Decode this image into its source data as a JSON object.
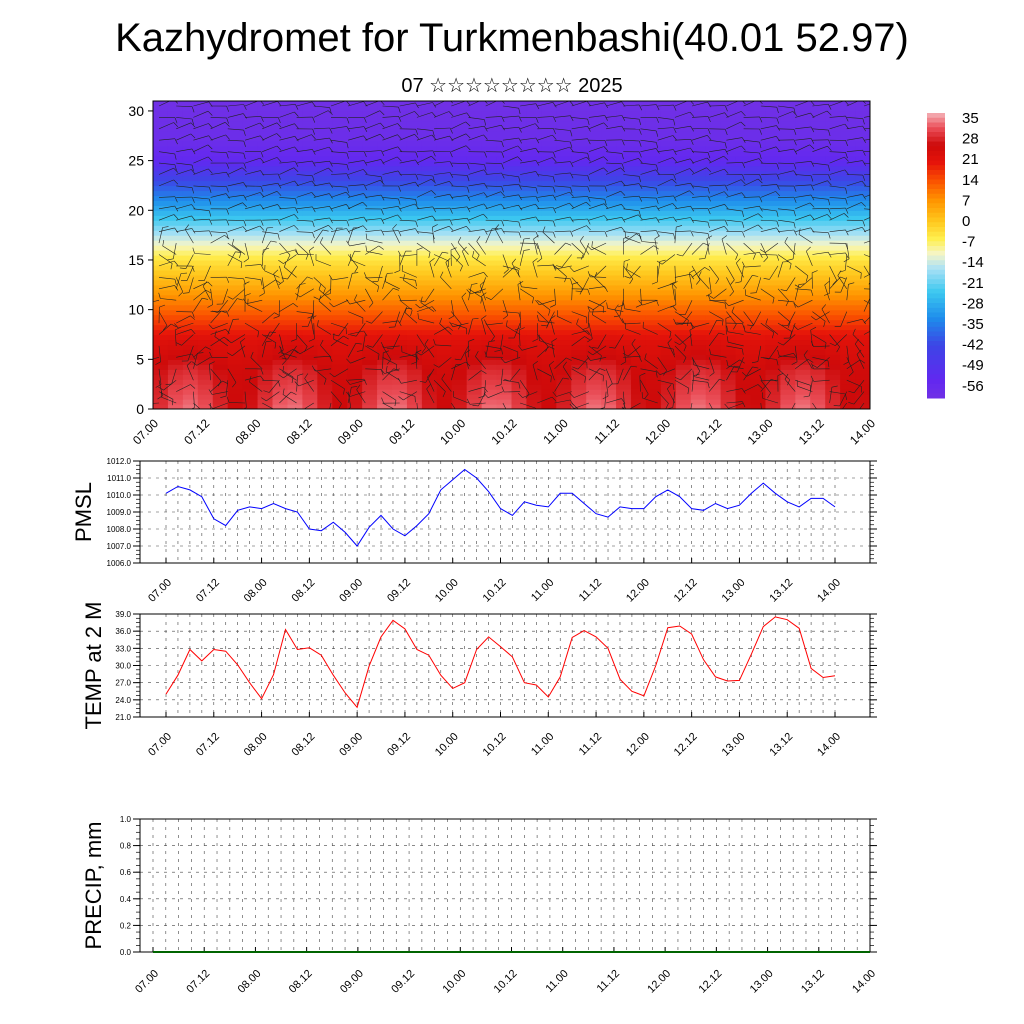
{
  "title": "Kazhydromet for Turkmenbashi(40.01 52.97)",
  "subtitle": "07 ☆☆☆☆☆☆☆☆ 2025",
  "colors": {
    "pmsl_line": "#0000ff",
    "temp_line": "#ff0000",
    "axis": "#000000",
    "precip_line": "#006400"
  },
  "chart_data": [
    {
      "type": "heatmap",
      "x_tick_labels": [
        "07.00",
        "07.12",
        "08.00",
        "08.12",
        "09.00",
        "09.12",
        "10.00",
        "10.12",
        "11.00",
        "11.12",
        "12.00",
        "12.12",
        "13.00",
        "13.12",
        "14.00"
      ],
      "y_ticks": [
        0,
        5,
        10,
        15,
        20,
        25,
        30
      ],
      "ylim": [
        0,
        31
      ],
      "colorbar_labels": [
        "35",
        "28",
        "21",
        "14",
        "7",
        "0",
        "-7",
        "-14",
        "-21",
        "-28",
        "-35",
        "-42",
        "-49",
        "-56"
      ],
      "temperature_profile": [
        {
          "level": 0,
          "value": 28
        },
        {
          "level": 4,
          "value": 25
        },
        {
          "level": 7,
          "value": 20
        },
        {
          "level": 10,
          "value": 10
        },
        {
          "level": 13,
          "value": 0
        },
        {
          "level": 15,
          "value": -6
        },
        {
          "level": 17,
          "value": -15
        },
        {
          "level": 20,
          "value": -30
        },
        {
          "level": 23,
          "value": -44
        },
        {
          "level": 25,
          "value": -56
        },
        {
          "level": 27,
          "value": -60
        },
        {
          "level": 31,
          "value": -62
        }
      ],
      "overlay": "wind barbs",
      "grid": false
    },
    {
      "type": "line",
      "ylabel": "PMSL",
      "ylim": [
        1006.0,
        1012.0
      ],
      "y_tick_labels": [
        "1012.0",
        "1011.0",
        "1010.0",
        "1009.0",
        "1008.0",
        "1007.0",
        "1006.0"
      ],
      "x_tick_labels": [
        "07.00",
        "07.12",
        "08.00",
        "08.12",
        "09.00",
        "09.12",
        "10.00",
        "10.12",
        "11.00",
        "11.12",
        "12.00",
        "12.12",
        "13.00",
        "13.12",
        "14.00"
      ],
      "series": [
        {
          "values": [
            1010.1,
            1010.5,
            1010.3,
            1009.9,
            1008.6,
            1008.2,
            1009.1,
            1009.3,
            1009.2,
            1009.5,
            1009.2,
            1009.0,
            1008.0,
            1007.9,
            1008.4,
            1007.8,
            1007.0,
            1008.1,
            1008.8,
            1008.0,
            1007.6,
            1008.2,
            1008.9,
            1010.3,
            1010.9,
            1011.5,
            1011.0,
            1010.2,
            1009.2,
            1008.8,
            1009.6,
            1009.4,
            1009.3,
            1010.1,
            1010.1,
            1009.5,
            1008.9,
            1008.7,
            1009.3,
            1009.2,
            1009.2,
            1009.9,
            1010.3,
            1009.9,
            1009.2,
            1009.1,
            1009.5,
            1009.2,
            1009.4,
            1010.1,
            1010.7,
            1010.1,
            1009.6,
            1009.3,
            1009.8,
            1009.8,
            1009.3
          ]
        }
      ],
      "grid": true
    },
    {
      "type": "line",
      "ylabel": "TEMP at 2 M",
      "ylim": [
        21.0,
        39.0
      ],
      "y_tick_labels": [
        "39.0",
        "36.0",
        "33.0",
        "30.0",
        "27.0",
        "24.0",
        "21.0"
      ],
      "x_tick_labels": [
        "07.00",
        "07.12",
        "08.00",
        "08.12",
        "09.00",
        "09.12",
        "10.00",
        "10.12",
        "11.00",
        "11.12",
        "12.00",
        "12.12",
        "13.00",
        "13.12",
        "14.00"
      ],
      "series": [
        {
          "values": [
            25.0,
            28.3,
            32.8,
            30.8,
            32.8,
            32.5,
            30.1,
            27.0,
            24.2,
            28.4,
            36.3,
            32.8,
            33.1,
            31.8,
            28.3,
            25.2,
            22.7,
            29.9,
            35.0,
            37.9,
            36.4,
            32.8,
            31.8,
            28.3,
            26.0,
            27.0,
            32.8,
            35.0,
            33.3,
            31.5,
            27.0,
            26.6,
            24.5,
            28.0,
            34.9,
            36.1,
            35.0,
            33.0,
            27.6,
            25.5,
            24.7,
            30.0,
            36.6,
            36.9,
            35.5,
            31.0,
            28.0,
            27.3,
            27.4,
            32.0,
            36.8,
            38.5,
            38.0,
            36.5,
            29.5,
            27.9,
            28.2
          ]
        }
      ],
      "grid": true
    },
    {
      "type": "line",
      "ylabel": "PRECIP, mm",
      "ylim": [
        0.0,
        1.0
      ],
      "y_tick_labels": [
        "1.0",
        "0.8",
        "0.6",
        "0.4",
        "0.2",
        "0.0"
      ],
      "x_tick_labels": [
        "07.00",
        "07.12",
        "08.00",
        "08.12",
        "09.00",
        "09.12",
        "10.00",
        "10.12",
        "11.00",
        "11.12",
        "12.00",
        "12.12",
        "13.00",
        "13.12",
        "14.00"
      ],
      "series": [
        {
          "values": [
            0,
            0,
            0,
            0,
            0,
            0,
            0,
            0,
            0,
            0,
            0,
            0,
            0,
            0,
            0,
            0,
            0,
            0,
            0,
            0,
            0,
            0,
            0,
            0,
            0,
            0,
            0,
            0,
            0,
            0,
            0,
            0,
            0,
            0,
            0,
            0,
            0,
            0,
            0,
            0,
            0,
            0,
            0,
            0,
            0,
            0,
            0,
            0,
            0,
            0,
            0,
            0,
            0,
            0,
            0,
            0,
            0
          ]
        }
      ],
      "grid": true
    }
  ]
}
